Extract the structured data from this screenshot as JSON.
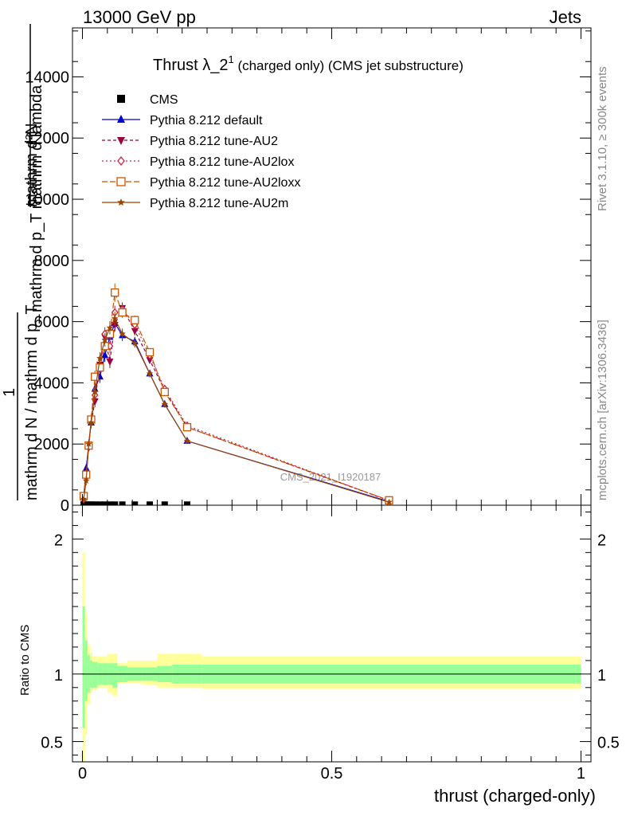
{
  "header": {
    "left": "13000 GeV pp",
    "right": "Jets"
  },
  "side_labels": {
    "rivet": "Rivet 3.1.10, ≥ 300k events",
    "mcplots": "mcplots.cern.ch [arXiv:1306.3436]"
  },
  "watermark": "CMS_2021_I1920187",
  "chart_data": [
    {
      "type": "line",
      "title_main": "Thrust λ_2",
      "title_sup": "1",
      "title_rest": " (charged only) (CMS jet substructure)",
      "ylabel_top": "mathrm d²N",
      "ylabel_top_den": "mathrm d p_T mathrm d lambda",
      "ylabel_frac_one": "1",
      "ylabel_bottom": "mathrm d N / mathrm d p_T",
      "ylim": [
        0,
        15600
      ],
      "xlim": [
        -0.02,
        1.02
      ],
      "y_ticks": [
        0,
        2000,
        4000,
        6000,
        8000,
        10000,
        12000,
        14000
      ],
      "y_tick_labels": [
        "0",
        "2000",
        "4000",
        "6000",
        "8000",
        "10000",
        "12000",
        "14000"
      ],
      "series": [
        {
          "name": "CMS",
          "color": "#000000",
          "marker": "square",
          "dash": "none",
          "x": [
            0.0025,
            0.0075,
            0.0125,
            0.0175,
            0.025,
            0.035,
            0.045,
            0.055,
            0.065,
            0.08,
            0.105,
            0.135,
            0.165,
            0.21
          ],
          "y": [
            30,
            20,
            20,
            20,
            20,
            20,
            20,
            20,
            20,
            20,
            20,
            20,
            20,
            20
          ],
          "err": [
            0,
            0,
            0,
            0,
            0,
            0,
            0,
            0,
            0,
            0,
            0,
            0,
            0,
            0
          ]
        },
        {
          "name": "Pythia 8.212 default",
          "color": "#0000cc",
          "marker": "triangle-up",
          "dash": "none",
          "x": [
            0.0025,
            0.0075,
            0.0125,
            0.0175,
            0.025,
            0.035,
            0.045,
            0.055,
            0.065,
            0.08,
            0.105,
            0.135,
            0.165,
            0.21,
            0.615
          ],
          "y": [
            250,
            1200,
            1950,
            2700,
            3800,
            4200,
            4900,
            5500,
            5950,
            5550,
            5350,
            4300,
            3300,
            2100,
            120
          ],
          "err": [
            80,
            150,
            150,
            180,
            200,
            200,
            220,
            220,
            220,
            180,
            150,
            120,
            110,
            80,
            20
          ]
        },
        {
          "name": "Pythia 8.212 tune-AU2",
          "color": "#99003d",
          "marker": "triangle-down",
          "dash": "4,3",
          "x": [
            0.0025,
            0.0075,
            0.0125,
            0.0175,
            0.025,
            0.035,
            0.045,
            0.055,
            0.065,
            0.08,
            0.105,
            0.135,
            0.165,
            0.21,
            0.615
          ],
          "y": [
            200,
            900,
            1950,
            2700,
            3400,
            4600,
            5500,
            4700,
            5900,
            6450,
            5700,
            4750,
            3750,
            2550,
            150
          ],
          "err": [
            80,
            150,
            150,
            180,
            200,
            200,
            220,
            220,
            220,
            180,
            150,
            120,
            110,
            80,
            20
          ]
        },
        {
          "name": "Pythia 8.212 tune-AU2lox",
          "color": "#cc2244",
          "marker": "diamond-open",
          "dash": "2,3",
          "x": [
            0.0025,
            0.0075,
            0.0125,
            0.0175,
            0.025,
            0.035,
            0.045,
            0.055,
            0.065,
            0.08,
            0.105,
            0.135,
            0.165,
            0.21,
            0.615
          ],
          "y": [
            200,
            1000,
            1900,
            2800,
            3600,
            4500,
            5600,
            5200,
            6300,
            6400,
            5900,
            4900,
            3800,
            2600,
            150
          ],
          "err": [
            80,
            150,
            150,
            180,
            200,
            200,
            220,
            220,
            220,
            180,
            150,
            120,
            110,
            80,
            20
          ]
        },
        {
          "name": "Pythia 8.212 tune-AU2loxx",
          "color": "#cc5500",
          "marker": "square-open",
          "dash": "7,3",
          "x": [
            0.0025,
            0.0075,
            0.0125,
            0.0175,
            0.025,
            0.035,
            0.045,
            0.055,
            0.065,
            0.08,
            0.105,
            0.135,
            0.165,
            0.21,
            0.615
          ],
          "y": [
            300,
            1000,
            1950,
            2800,
            4200,
            4500,
            5200,
            5600,
            6950,
            6300,
            6050,
            5000,
            3700,
            2550,
            160
          ],
          "err": [
            80,
            150,
            150,
            180,
            200,
            200,
            220,
            220,
            300,
            180,
            150,
            120,
            110,
            80,
            20
          ]
        },
        {
          "name": "Pythia 8.212 tune-AU2m",
          "color": "#994400",
          "marker": "star",
          "dash": "none",
          "x": [
            0.0025,
            0.0075,
            0.0125,
            0.0175,
            0.025,
            0.035,
            0.045,
            0.055,
            0.065,
            0.08,
            0.105,
            0.135,
            0.165,
            0.21,
            0.615
          ],
          "y": [
            200,
            800,
            2000,
            2700,
            3700,
            4800,
            5400,
            5800,
            6100,
            5600,
            5300,
            4300,
            3300,
            2100,
            100
          ],
          "err": [
            80,
            150,
            150,
            180,
            200,
            200,
            220,
            220,
            220,
            180,
            150,
            120,
            110,
            80,
            20
          ]
        }
      ]
    },
    {
      "type": "area",
      "ylabel": "Ratio to CMS",
      "xlabel": "thrust (charged-only)",
      "ylim": [
        0.35,
        2.25
      ],
      "xlim": [
        -0.02,
        1.02
      ],
      "y_ticks": [
        0.5,
        1,
        2
      ],
      "y_tick_labels": [
        "0.5",
        "1",
        "2"
      ],
      "x_ticks": [
        0,
        0.5,
        1
      ],
      "x_tick_labels": [
        "0",
        "0.5",
        "1"
      ],
      "reference": 1,
      "bins": [
        0,
        0.005,
        0.01,
        0.015,
        0.02,
        0.03,
        0.04,
        0.05,
        0.06,
        0.07,
        0.09,
        0.12,
        0.15,
        0.18,
        0.24,
        1.0
      ],
      "band_inner_lo": [
        0.6,
        0.8,
        0.86,
        0.9,
        0.9,
        0.92,
        0.92,
        0.92,
        0.9,
        0.94,
        0.95,
        0.95,
        0.94,
        0.93,
        0.93
      ],
      "band_inner_hi": [
        1.5,
        1.25,
        1.14,
        1.1,
        1.09,
        1.08,
        1.08,
        1.08,
        1.08,
        1.06,
        1.05,
        1.05,
        1.06,
        1.07,
        1.07
      ],
      "band_outer_lo": [
        0.3,
        0.55,
        0.78,
        0.86,
        0.88,
        0.9,
        0.9,
        0.86,
        0.84,
        0.93,
        0.93,
        0.92,
        0.9,
        0.9,
        0.89
      ],
      "band_outer_hi": [
        1.9,
        1.45,
        1.22,
        1.16,
        1.13,
        1.13,
        1.13,
        1.15,
        1.15,
        1.08,
        1.1,
        1.1,
        1.15,
        1.15,
        1.13
      ],
      "colors": {
        "inner": "#99ff99",
        "outer": "#ffff99"
      }
    }
  ]
}
